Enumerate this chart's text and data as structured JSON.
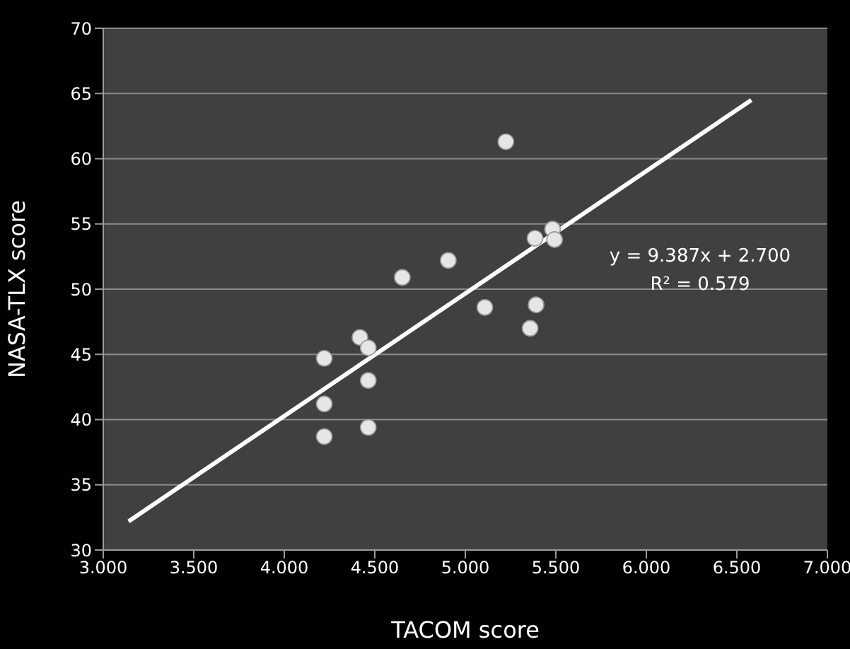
{
  "chart_data": {
    "type": "scatter",
    "xlabel": "TACOM score",
    "ylabel": "NASA-TLX score",
    "series": [
      {
        "color": "#e6e6e6",
        "x": [
          5.224,
          5.482,
          5.493,
          5.385,
          4.906,
          4.652,
          5.108,
          5.391,
          5.358,
          4.418,
          4.464,
          4.221,
          4.464,
          4.221,
          4.464,
          4.221
        ],
        "values": [
          61.3,
          54.6,
          53.8,
          53.9,
          52.2,
          50.9,
          48.6,
          48.8,
          47.0,
          46.3,
          45.5,
          44.7,
          43.0,
          41.2,
          39.4,
          38.7
        ]
      },
      {
        "type": "line",
        "color": "#ffffff",
        "x": [
          3.14,
          6.58
        ],
        "values": [
          32.2,
          64.5
        ],
        "marker": "none"
      }
    ],
    "xlim": [
      3,
      7
    ],
    "xticks": [
      {
        "value": 3,
        "label": "3.000"
      },
      {
        "value": 3.5,
        "label": "3.500"
      },
      {
        "value": 4,
        "label": "4.000"
      },
      {
        "value": 4.5,
        "label": "4.500"
      },
      {
        "value": 5,
        "label": "5.000"
      },
      {
        "value": 5.5,
        "label": "5.500"
      },
      {
        "value": 6,
        "label": "6.000"
      },
      {
        "value": 6.5,
        "label": "6.500"
      },
      {
        "value": 7,
        "label": "7.000"
      }
    ],
    "ylim": [
      30,
      70
    ],
    "yticks": [
      30,
      35,
      40,
      45,
      50,
      55,
      60,
      65,
      70
    ],
    "grid": "y",
    "marker": "circle",
    "legend": false,
    "annotations": [
      "y = 9.387x + 2.700",
      "R² = 0.579"
    ]
  }
}
